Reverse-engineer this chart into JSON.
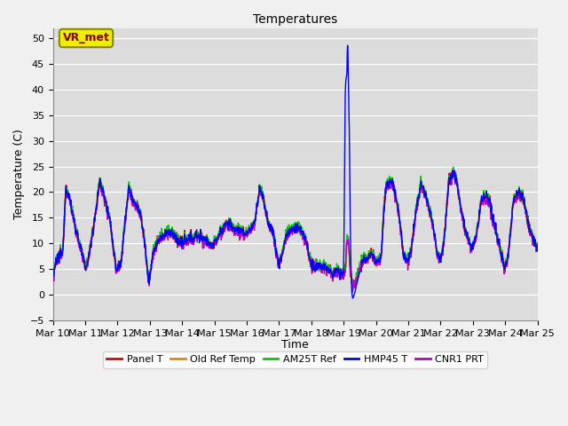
{
  "title": "Temperatures",
  "ylabel": "Temperature (C)",
  "xlabel": "Time",
  "ylim": [
    -5,
    52
  ],
  "yticks": [
    -5,
    0,
    5,
    10,
    15,
    20,
    25,
    30,
    35,
    40,
    45,
    50
  ],
  "bg_color": "#dcdcdc",
  "fig_color": "#f0f0f0",
  "annotation_text": "VR_met",
  "annotation_bg": "#eeee00",
  "annotation_edge": "#888800",
  "annotation_text_color": "#880000",
  "legend_entries": [
    "Panel T",
    "Old Ref Temp",
    "AM25T Ref",
    "HMP45 T",
    "CNR1 PRT"
  ],
  "line_colors": [
    "#dd0000",
    "#dd8800",
    "#00cc00",
    "#0000ff",
    "#bb00bb"
  ],
  "line_width": 1.0,
  "xtick_labels": [
    "Mar 10",
    "Mar 11",
    "Mar 12",
    "Mar 13",
    "Mar 14",
    "Mar 15",
    "Mar 16",
    "Mar 17",
    "Mar 18",
    "Mar 19",
    "Mar 20",
    "Mar 21",
    "Mar 22",
    "Mar 23",
    "Mar 24",
    "Mar 25"
  ],
  "n_days": 15,
  "pts_per_day": 96,
  "font_size": 9,
  "title_size": 10
}
